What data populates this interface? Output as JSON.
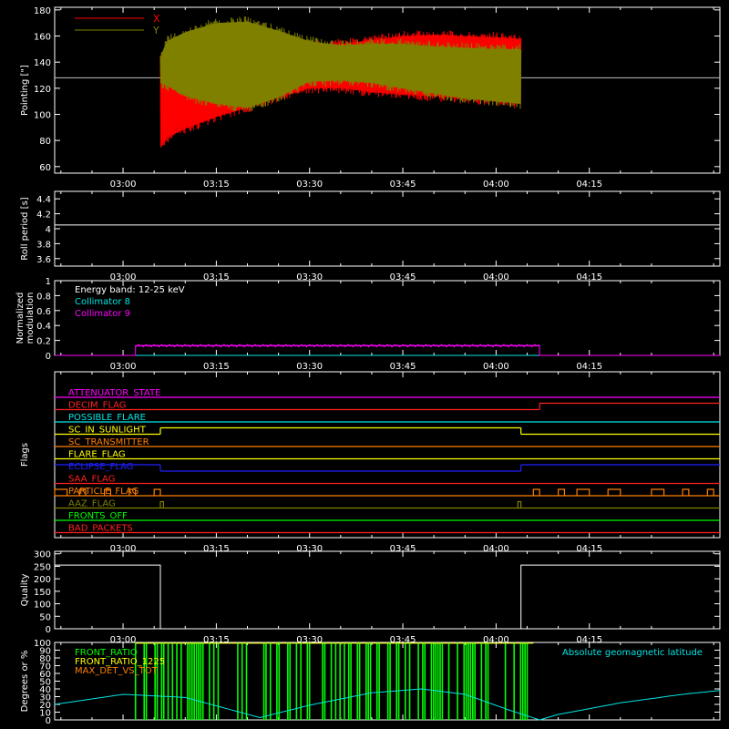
{
  "colors": {
    "axis": "#ffffff",
    "x_series": "#ff0000",
    "y_series": "#808000",
    "cyan": "#00e5e5",
    "magenta": "#ff00ff",
    "green": "#00ff00",
    "yellow": "#ffff00",
    "orange": "#ff8000",
    "blue": "#0000ff",
    "red": "#ff2020",
    "olive": "#808000"
  },
  "time_ticks": [
    "03:00",
    "03:15",
    "03:30",
    "03:45",
    "04:00",
    "04:15"
  ],
  "chart_data": [
    {
      "type": "line",
      "ylabel": "Pointing [\"]",
      "ylim": [
        55,
        182
      ],
      "yticks": [
        60,
        80,
        100,
        120,
        140,
        160,
        180
      ],
      "xlim_minutes": [
        -11,
        96
      ],
      "legend": [
        "X",
        "Y"
      ],
      "reference_line": 128,
      "data_start_minute": 6,
      "data_end_minute": 64,
      "series": [
        {
          "name": "X",
          "x_minutes": [
            6,
            7,
            10,
            15,
            20,
            25,
            30,
            35,
            40,
            45,
            50,
            55,
            60,
            64
          ],
          "upper": [
            145,
            150,
            150,
            152,
            153,
            155,
            156,
            158,
            161,
            164,
            165,
            164,
            163,
            162
          ],
          "lower": [
            70,
            78,
            85,
            94,
            101,
            109,
            116,
            116,
            113,
            111,
            110,
            108,
            106,
            104
          ]
        },
        {
          "name": "Y",
          "x_minutes": [
            6,
            7,
            10,
            15,
            20,
            25,
            30,
            35,
            40,
            45,
            50,
            55,
            60,
            64
          ],
          "upper": [
            148,
            160,
            167,
            174,
            175,
            168,
            160,
            157,
            158,
            158,
            156,
            155,
            154,
            154
          ],
          "lower": [
            120,
            118,
            110,
            104,
            101,
            109,
            121,
            122,
            120,
            116,
            112,
            108,
            106,
            104
          ]
        }
      ]
    },
    {
      "type": "line",
      "ylabel": "Roll period [s]",
      "ylim": [
        3.5,
        4.5
      ],
      "yticks": [
        3.6,
        3.8,
        4.0,
        4.2,
        4.4
      ],
      "series": [
        {
          "name": "",
          "x_minutes": [
            -11,
            96
          ],
          "values": [
            4.05,
            4.05
          ]
        }
      ]
    },
    {
      "type": "line",
      "ylabel": "Normalized modulation",
      "ylim": [
        0,
        1.0
      ],
      "yticks": [
        0.0,
        0.2,
        0.4,
        0.6,
        0.8,
        1.0
      ],
      "annotation": "Energy band: 12-25 keV",
      "series": [
        {
          "name": "Collimator 8",
          "x_minutes": [
            -11,
            96
          ],
          "values": [
            0.0,
            0.0
          ]
        },
        {
          "name": "Collimator 9",
          "x_minutes": [
            -11,
            2,
            2,
            67,
            67,
            96
          ],
          "values": [
            0.0,
            0.0,
            0.13,
            0.13,
            0.0,
            0.0
          ]
        }
      ]
    },
    {
      "type": "line",
      "ylabel": "Flags",
      "flags": [
        {
          "name": "ATTENUATOR_STATE",
          "color": "#ff00ff",
          "segments": [
            [
              -11,
              96,
              0
            ]
          ]
        },
        {
          "name": "DECIM_FLAG",
          "color": "#ff2020",
          "segments": [
            [
              -11,
              67,
              0
            ],
            [
              67,
              96,
              1
            ]
          ]
        },
        {
          "name": "POSSIBLE_FLARE",
          "color": "#00e5e5",
          "segments": [
            [
              -11,
              96,
              0
            ]
          ]
        },
        {
          "name": "SC_IN_SUNLIGHT",
          "color": "#ffff00",
          "segments": [
            [
              -11,
              6,
              0
            ],
            [
              6,
              64,
              1
            ],
            [
              64,
              96,
              0
            ]
          ]
        },
        {
          "name": "SC_TRANSMITTER",
          "color": "#ff8000",
          "segments": [
            [
              -11,
              96,
              0
            ]
          ]
        },
        {
          "name": "FLARE_FLAG",
          "color": "#ffff00",
          "segments": [
            [
              -11,
              96,
              0
            ]
          ]
        },
        {
          "name": "ECLIPSE_FLAG",
          "color": "#2020ff",
          "segments": [
            [
              -11,
              6,
              1
            ],
            [
              6,
              64,
              0
            ],
            [
              64,
              96,
              1
            ]
          ]
        },
        {
          "name": "SAA_FLAG",
          "color": "#ff2020",
          "segments": [
            [
              -11,
              96,
              0
            ]
          ]
        },
        {
          "name": "PARTICLE_FLAG",
          "color": "#ff8000",
          "segments": [
            [
              -11,
              96,
              0
            ]
          ],
          "pulses": [
            [
              -11,
              -9
            ],
            [
              -7,
              -6
            ],
            [
              -3,
              -2
            ],
            [
              1,
              2
            ],
            [
              5,
              6
            ],
            [
              66,
              67
            ],
            [
              70,
              71
            ],
            [
              73,
              75
            ],
            [
              78,
              80
            ],
            [
              85,
              87
            ],
            [
              90,
              91
            ],
            [
              94,
              95
            ]
          ]
        },
        {
          "name": "AAZ_FLAG",
          "color": "#808000",
          "segments": [
            [
              -11,
              96,
              0
            ]
          ],
          "pulses": [
            [
              6,
              6.5
            ],
            [
              63.5,
              64
            ]
          ]
        },
        {
          "name": "FRONTS_OFF",
          "color": "#00ff00",
          "segments": [
            [
              -11,
              96,
              0
            ]
          ]
        },
        {
          "name": "BAD_PACKETS",
          "color": "#ff2020",
          "segments": [
            [
              -11,
              96,
              0
            ]
          ]
        }
      ]
    },
    {
      "type": "line",
      "ylabel": "Quality",
      "ylim": [
        0,
        310
      ],
      "yticks": [
        0,
        50,
        100,
        150,
        200,
        250,
        300
      ],
      "series": [
        {
          "name": "",
          "x_minutes": [
            -11,
            6,
            6,
            64,
            64,
            96
          ],
          "values": [
            255,
            255,
            0,
            0,
            255,
            255
          ]
        }
      ]
    },
    {
      "type": "line",
      "ylabel": "Degrees or %",
      "ylim": [
        0,
        100
      ],
      "yticks": [
        0,
        10,
        20,
        30,
        40,
        50,
        60,
        70,
        80,
        90,
        100
      ],
      "legend": [
        "FRONT_RATIO",
        "FRONT_RATIO_1225",
        "MAX_DET_VS_TOT",
        "Absolute geomagnetic latitude"
      ],
      "series": [
        {
          "name": "FRONT_RATIO",
          "bursts_between_minutes": [
            2,
            66
          ],
          "value_high": 100,
          "value_low": 0
        },
        {
          "name": "Absolute geomagnetic latitude",
          "x_minutes": [
            -11,
            0,
            10,
            22,
            30,
            40,
            48,
            55,
            62,
            67,
            70,
            80,
            90,
            96
          ],
          "values": [
            20,
            33,
            29,
            3,
            19,
            35,
            40,
            33,
            13,
            0,
            7,
            22,
            33,
            38
          ]
        }
      ]
    }
  ]
}
